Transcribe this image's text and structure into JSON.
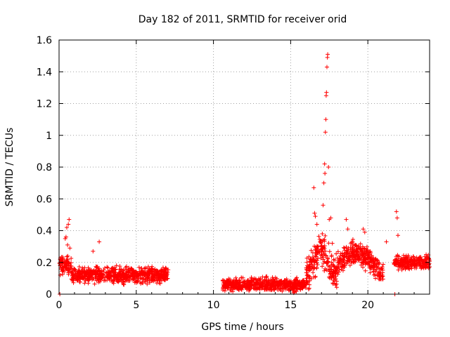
{
  "chart_data": {
    "type": "scatter",
    "title": "Day 182 of 2011, SRMTID for receiver orid",
    "xlabel": "GPS time / hours",
    "ylabel": "SRMTID / TECUs",
    "xlim": [
      0,
      24
    ],
    "ylim": [
      0,
      1.6
    ],
    "xticks": [
      0,
      5,
      10,
      15,
      20
    ],
    "yticks": [
      0,
      0.2,
      0.4,
      0.6,
      0.8,
      1,
      1.2,
      1.4,
      1.6
    ],
    "ytick_labels": [
      "0",
      "0.2",
      "0.4",
      "0.6",
      "0.8",
      "1",
      "1.2",
      "1.4",
      "1.6"
    ],
    "grid": true,
    "marker": "+",
    "color": "#ff0000",
    "segments": [
      {
        "name": "0-0.8h",
        "x_range": [
          0.0,
          0.8
        ],
        "baseline": 0.18,
        "spread": 0.08
      },
      {
        "name": "0.8-7.1h",
        "x_range": [
          0.8,
          7.1
        ],
        "baseline": 0.12,
        "spread": 0.07
      },
      {
        "name": "10.6-16h",
        "x_range": [
          10.6,
          16.0
        ],
        "baseline": 0.06,
        "spread": 0.06
      },
      {
        "name": "16-18h",
        "x_range": [
          16.0,
          18.0
        ],
        "baseline": 0.2,
        "spread": 0.15
      },
      {
        "name": "18-21h",
        "x_range": [
          18.0,
          21.0
        ],
        "baseline": 0.22,
        "spread": 0.1
      },
      {
        "name": "21.7-24h",
        "x_range": [
          21.7,
          24.0
        ],
        "baseline": 0.2,
        "spread": 0.06
      }
    ],
    "highlights": [
      {
        "x": 0.45,
        "y": 0.36
      },
      {
        "x": 0.5,
        "y": 0.42
      },
      {
        "x": 0.6,
        "y": 0.44
      },
      {
        "x": 0.65,
        "y": 0.47
      },
      {
        "x": 0.55,
        "y": 0.31
      },
      {
        "x": 0.4,
        "y": 0.35
      },
      {
        "x": 0.7,
        "y": 0.29
      },
      {
        "x": 2.6,
        "y": 0.33
      },
      {
        "x": 2.2,
        "y": 0.27
      },
      {
        "x": 16.5,
        "y": 0.67
      },
      {
        "x": 16.55,
        "y": 0.51
      },
      {
        "x": 16.6,
        "y": 0.49
      },
      {
        "x": 16.7,
        "y": 0.44
      },
      {
        "x": 17.05,
        "y": 0.38
      },
      {
        "x": 17.1,
        "y": 0.56
      },
      {
        "x": 17.15,
        "y": 0.7
      },
      {
        "x": 17.2,
        "y": 0.82
      },
      {
        "x": 17.22,
        "y": 0.76
      },
      {
        "x": 17.25,
        "y": 1.02
      },
      {
        "x": 17.28,
        "y": 1.1
      },
      {
        "x": 17.3,
        "y": 1.25
      },
      {
        "x": 17.32,
        "y": 1.27
      },
      {
        "x": 17.35,
        "y": 1.43
      },
      {
        "x": 17.38,
        "y": 1.49
      },
      {
        "x": 17.4,
        "y": 1.51
      },
      {
        "x": 17.45,
        "y": 0.8
      },
      {
        "x": 17.5,
        "y": 0.47
      },
      {
        "x": 17.6,
        "y": 0.48
      },
      {
        "x": 17.7,
        "y": 0.32
      },
      {
        "x": 18.6,
        "y": 0.47
      },
      {
        "x": 18.7,
        "y": 0.41
      },
      {
        "x": 19.7,
        "y": 0.41
      },
      {
        "x": 19.8,
        "y": 0.39
      },
      {
        "x": 21.2,
        "y": 0.33
      },
      {
        "x": 21.85,
        "y": 0.52
      },
      {
        "x": 21.9,
        "y": 0.48
      },
      {
        "x": 21.95,
        "y": 0.37
      },
      {
        "x": 0.05,
        "y": 0.0
      },
      {
        "x": 21.75,
        "y": 0.0
      }
    ]
  }
}
